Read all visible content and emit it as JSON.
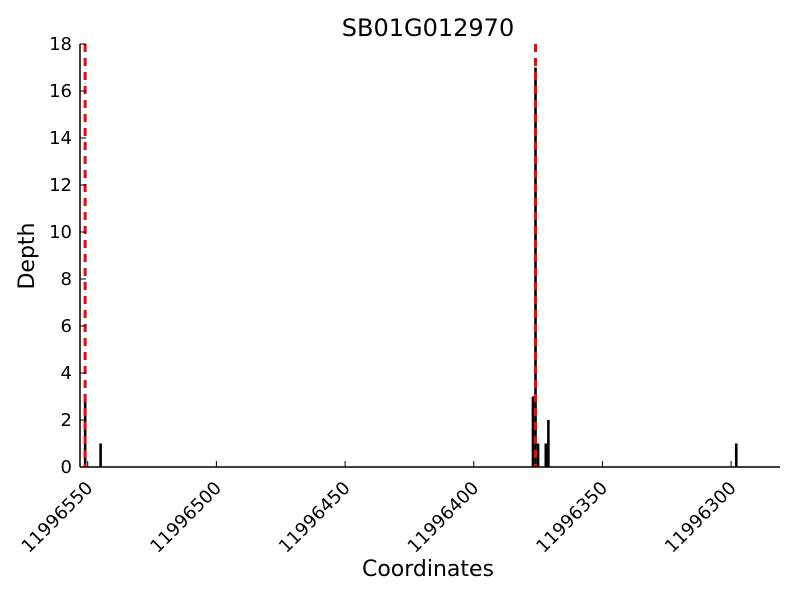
{
  "chart_data": {
    "type": "bar",
    "title": "SB01G012970",
    "xlabel": "Coordinates",
    "ylabel": "Depth",
    "x_reversed": true,
    "xlim": [
      11996553,
      11996281
    ],
    "ylim": [
      0,
      18
    ],
    "xticks": [
      "11996550",
      "11996500",
      "11996450",
      "11996400",
      "11996350",
      "11996300"
    ],
    "yticks": [
      "0",
      "2",
      "4",
      "6",
      "8",
      "10",
      "12",
      "14",
      "16",
      "18"
    ],
    "bars": [
      {
        "x": 11996551,
        "y": 3
      },
      {
        "x": 11996545,
        "y": 1
      },
      {
        "x": 11996377,
        "y": 3
      },
      {
        "x": 11996376,
        "y": 17
      },
      {
        "x": 11996375,
        "y": 1
      },
      {
        "x": 11996372,
        "y": 1
      },
      {
        "x": 11996371,
        "y": 2
      },
      {
        "x": 11996298,
        "y": 1
      }
    ],
    "vlines": [
      {
        "x": 11996551,
        "color": "#ff0000",
        "style": "dashed"
      },
      {
        "x": 11996376,
        "color": "#ff0000",
        "style": "dashed"
      }
    ],
    "bar_color": "#000000",
    "grid": false
  }
}
